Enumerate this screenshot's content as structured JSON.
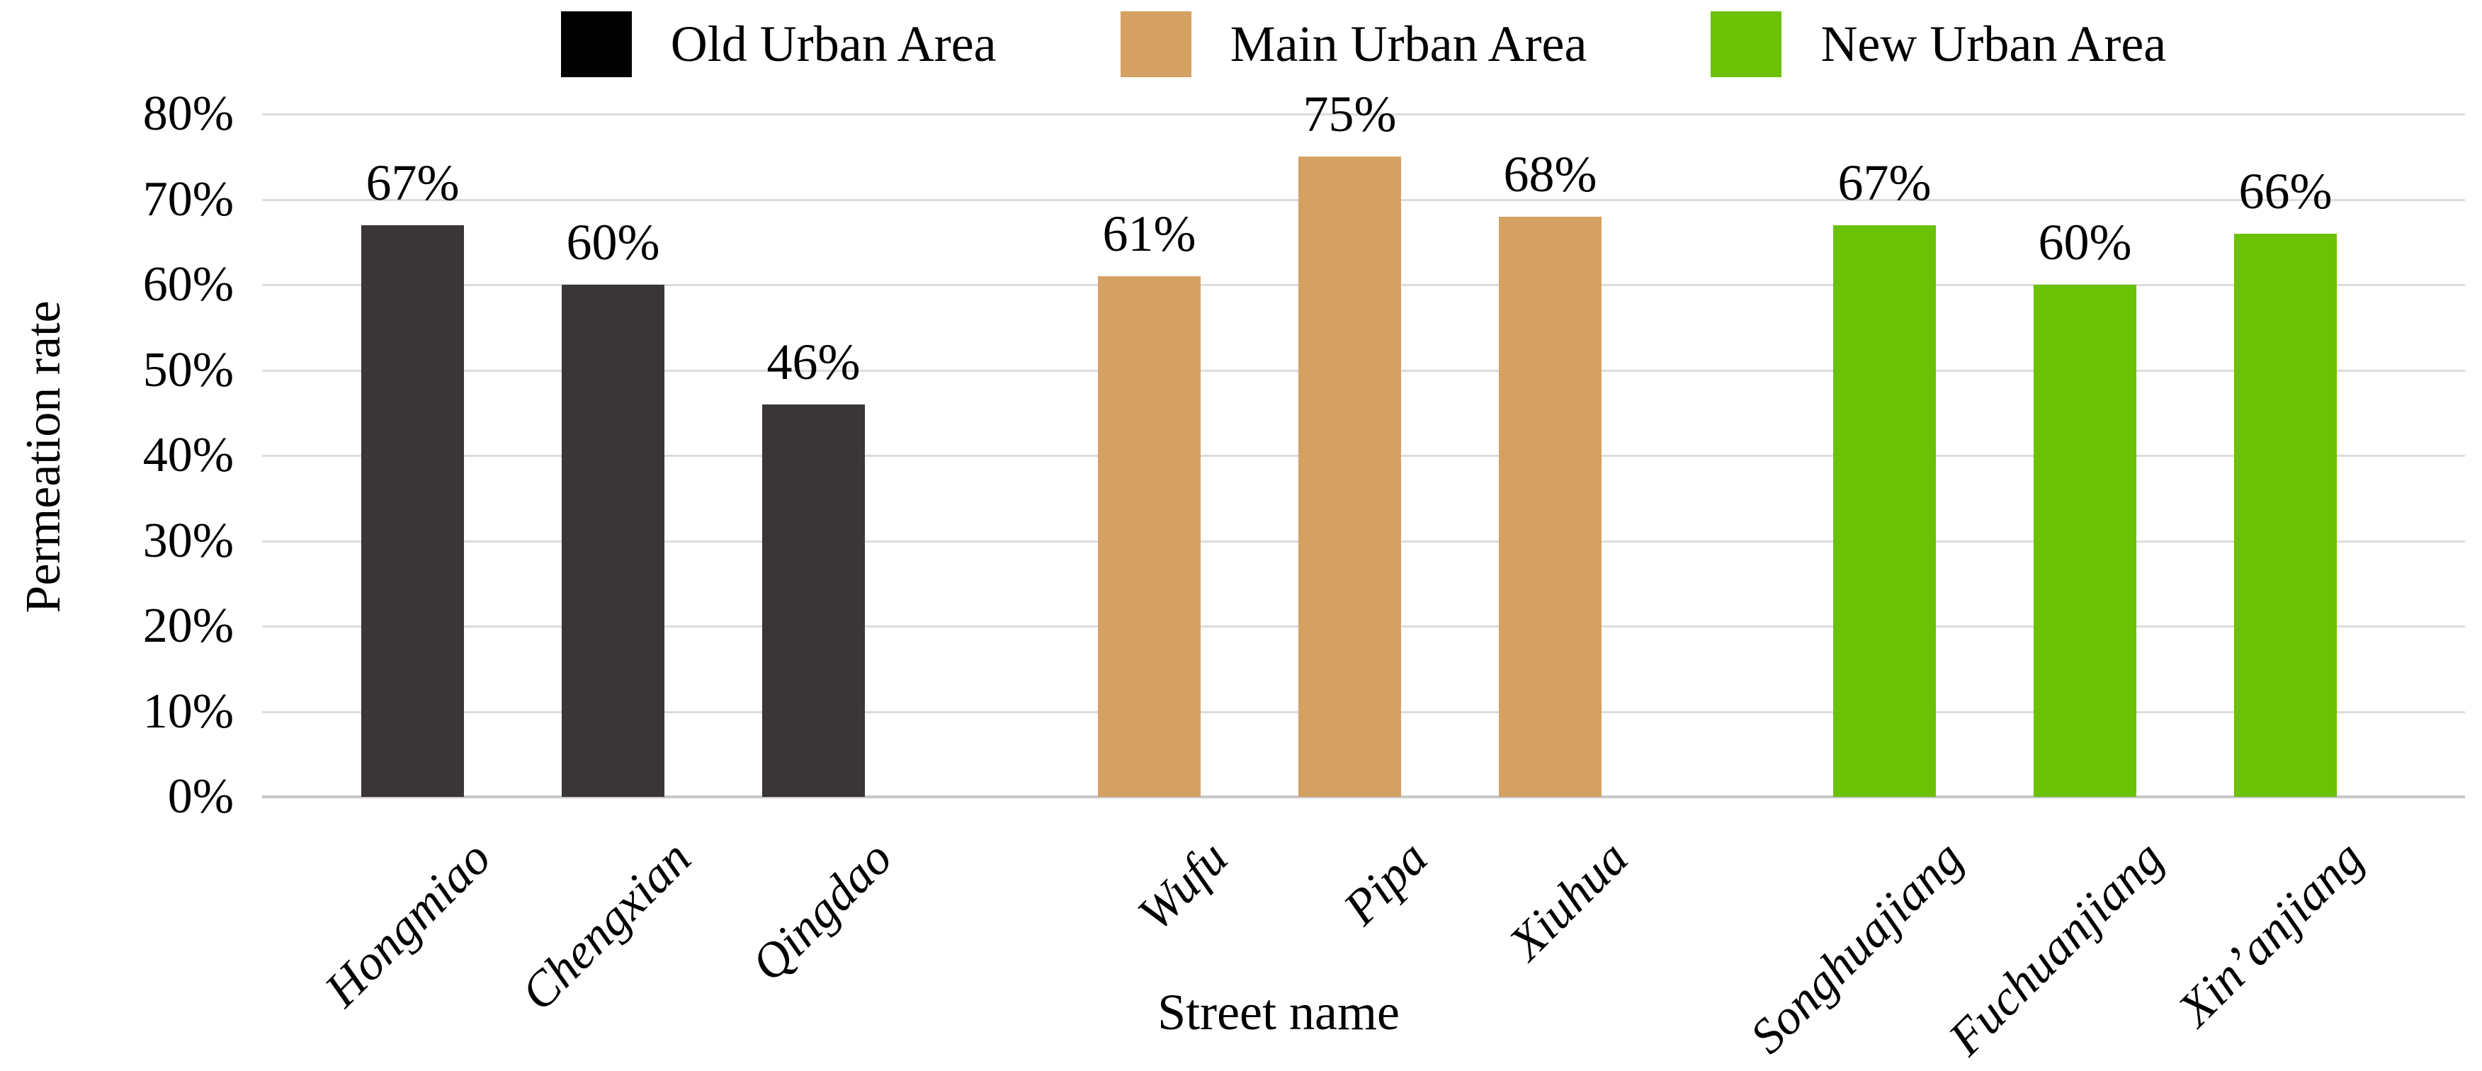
{
  "chart_data": {
    "type": "bar",
    "title": "",
    "xlabel": "Street name",
    "ylabel": "Permeation rate",
    "ylim": [
      0,
      80
    ],
    "y_ticks": [
      0,
      10,
      20,
      30,
      40,
      50,
      60,
      70,
      80
    ],
    "y_tick_suffix": "%",
    "grid": "horizontal-only",
    "legend_position": "top",
    "groups": [
      {
        "name": "Old Urban Area",
        "bar_color": "#3a3536",
        "legend_color": "#000000",
        "categories": [
          "Hongmiao",
          "Chengxian",
          "Qingdao"
        ],
        "values": [
          67,
          60,
          46
        ],
        "value_labels": [
          "67%",
          "60%",
          "46%"
        ]
      },
      {
        "name": "Main Urban Area",
        "bar_color": "#d5a163",
        "legend_color": "#d5a163",
        "categories": [
          "Wufu",
          "Pipa",
          "Xiuhua"
        ],
        "values": [
          61,
          75,
          68
        ],
        "value_labels": [
          "61%",
          "75%",
          "68%"
        ]
      },
      {
        "name": "New Urban Area",
        "bar_color": "#6bc104",
        "legend_color": "#6bc104",
        "categories": [
          "Songhuajiang",
          "Fuchuanjiang",
          "Xin’anjiang"
        ],
        "values": [
          67,
          60,
          66
        ],
        "value_labels": [
          "67%",
          "60%",
          "66%"
        ]
      }
    ],
    "colors": {
      "gridline": "#dcdcdc",
      "axis_line": "#c8c8c8",
      "text": "#000000",
      "background": "#ffffff"
    }
  }
}
